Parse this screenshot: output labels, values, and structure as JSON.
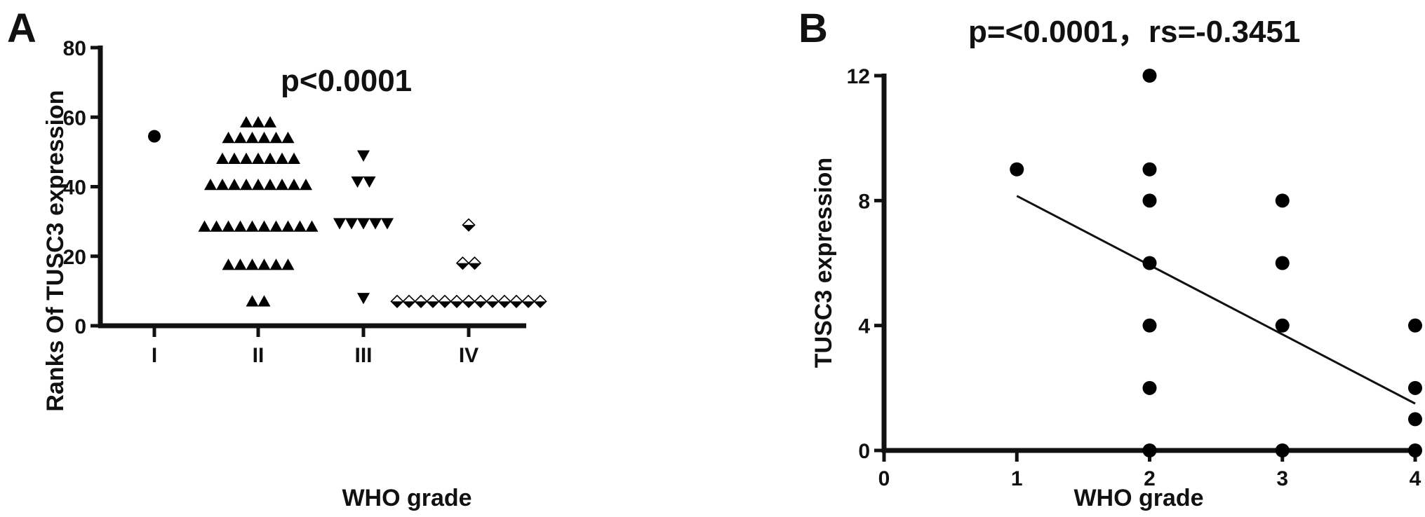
{
  "chart_data": [
    {
      "type": "scatter",
      "subtype": "dot-plot",
      "panel_label": "A",
      "annotation": "p<0.0001",
      "xlabel": "WHO grade",
      "ylabel": "Ranks Of TUSC3 expression",
      "categories": [
        "I",
        "II",
        "III",
        "IV"
      ],
      "ylim": [
        0,
        80
      ],
      "yticks": [
        0,
        20,
        40,
        60,
        80
      ],
      "series": [
        {
          "category": "I",
          "marker": "circle",
          "values": [
            54.5
          ]
        },
        {
          "category": "II",
          "marker": "triangle-up",
          "values": [
            58.5,
            58.5,
            58.5,
            54,
            54,
            54,
            54,
            54,
            54,
            48,
            48,
            48,
            48,
            48,
            48,
            48,
            40.5,
            40.5,
            40.5,
            40.5,
            40.5,
            40.5,
            40.5,
            40.5,
            40.5,
            28.5,
            28.5,
            28.5,
            28.5,
            28.5,
            28.5,
            28.5,
            28.5,
            28.5,
            28.5,
            17.5,
            17.5,
            17.5,
            17.5,
            17.5,
            17.5,
            7,
            7
          ]
        },
        {
          "category": "III",
          "marker": "triangle-down",
          "values": [
            49,
            41.5,
            41.5,
            29.5,
            29.5,
            29.5,
            29.5,
            29.5,
            8
          ]
        },
        {
          "category": "IV",
          "marker": "diamond",
          "values": [
            29,
            18,
            18,
            7,
            7,
            7,
            7,
            7,
            7,
            7,
            7,
            7,
            7,
            7,
            7,
            7
          ]
        }
      ]
    },
    {
      "type": "scatter",
      "panel_label": "B",
      "annotation": "p=<0.0001，rs=-0.3451",
      "xlabel": "WHO grade",
      "ylabel": "TUSC3 expression",
      "xlim": [
        0,
        4
      ],
      "xticks": [
        0,
        1,
        2,
        3,
        4
      ],
      "ylim": [
        0,
        12
      ],
      "yticks": [
        0,
        4,
        8,
        12
      ],
      "points": [
        [
          1,
          9
        ],
        [
          2,
          12
        ],
        [
          2,
          9
        ],
        [
          2,
          8
        ],
        [
          2,
          6
        ],
        [
          2,
          4
        ],
        [
          2,
          2
        ],
        [
          2,
          0
        ],
        [
          3,
          8
        ],
        [
          3,
          6
        ],
        [
          3,
          4
        ],
        [
          3,
          0
        ],
        [
          4,
          4
        ],
        [
          4,
          2
        ],
        [
          4,
          1
        ],
        [
          4,
          0
        ]
      ],
      "fit_line": {
        "x": [
          1,
          4
        ],
        "y": [
          8.15,
          1.5
        ]
      }
    }
  ]
}
